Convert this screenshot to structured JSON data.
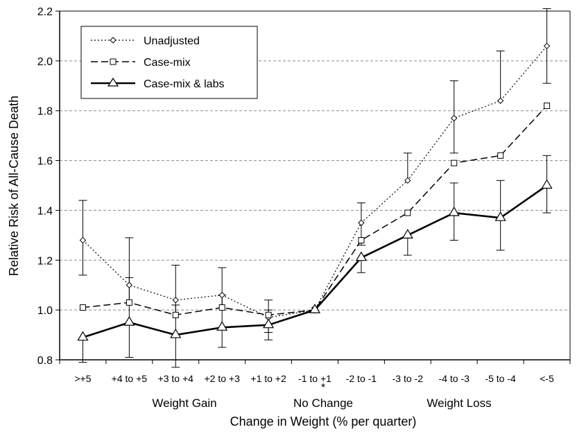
{
  "chart_data": {
    "type": "line",
    "title": "",
    "xlabel": "Change in Weight (% per quarter)",
    "ylabel": "Relative Risk of All-Cause Death",
    "ylim": [
      0.8,
      2.2
    ],
    "yticks": [
      "0.8",
      "1.0",
      "1.2",
      "1.4",
      "1.6",
      "1.8",
      "2.0",
      "2.2"
    ],
    "grid": "horizontal dashed",
    "legend_position": "top-left",
    "categories": [
      ">+5",
      "+4 to +5",
      "+3 to +4",
      "+2 to +3",
      "+1 to +2",
      "-1 to +1",
      "-2 to -1",
      "-3 to -2",
      "-4 to -3",
      "-5 to -4",
      "<-5"
    ],
    "reference_marker": "*",
    "groups": [
      {
        "label": "Weight Gain"
      },
      {
        "label": "No Change"
      },
      {
        "label": "Weight Loss"
      }
    ],
    "series": [
      {
        "name": "Unadjusted",
        "style": "dotted",
        "marker": "diamond",
        "values": [
          1.28,
          1.1,
          1.04,
          1.06,
          0.97,
          1.0,
          1.35,
          1.52,
          1.77,
          1.84,
          2.06
        ],
        "err_low": [
          1.14,
          null,
          null,
          null,
          null,
          null,
          1.26,
          null,
          1.63,
          null,
          1.91
        ],
        "err_high": [
          1.44,
          null,
          null,
          null,
          null,
          null,
          1.43,
          1.63,
          1.92,
          2.04,
          2.21
        ]
      },
      {
        "name": "Case-mix",
        "style": "dashed",
        "marker": "square",
        "values": [
          1.01,
          1.03,
          0.98,
          1.01,
          0.98,
          1.0,
          1.28,
          1.39,
          1.59,
          1.62,
          1.82
        ],
        "err_low": [
          null,
          null,
          null,
          null,
          0.91,
          null,
          null,
          null,
          null,
          null,
          null
        ],
        "err_high": [
          null,
          1.13,
          1.02,
          1.06,
          1.04,
          null,
          null,
          null,
          null,
          null,
          null
        ]
      },
      {
        "name": "Case-mix & labs",
        "style": "solid",
        "marker": "triangle",
        "values": [
          0.89,
          0.95,
          0.9,
          0.93,
          0.94,
          1.0,
          1.21,
          1.3,
          1.39,
          1.37,
          1.5
        ],
        "err_low": [
          0.79,
          0.81,
          0.77,
          0.85,
          0.88,
          null,
          1.15,
          1.22,
          1.28,
          1.24,
          1.39
        ],
        "err_high": [
          null,
          1.29,
          1.18,
          1.17,
          1.0,
          null,
          null,
          null,
          1.51,
          1.52,
          1.62
        ]
      }
    ]
  }
}
